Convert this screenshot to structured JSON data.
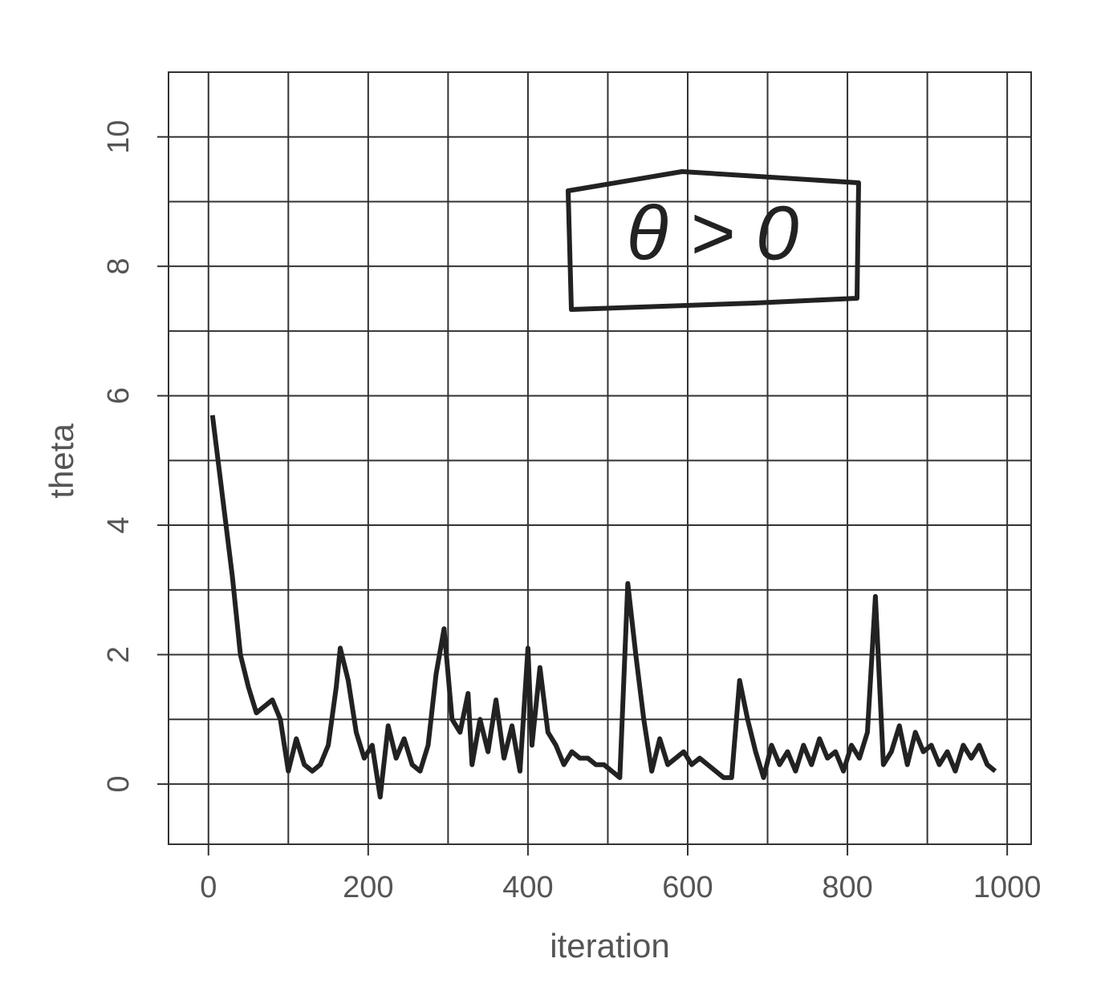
{
  "chart_data": {
    "type": "line",
    "x_label": "iteration",
    "y_label": "theta",
    "annotation": "θ > 0",
    "xlim": [
      -50,
      1030
    ],
    "ylim": [
      -0.93,
      11
    ],
    "xticks": [
      0,
      200,
      400,
      600,
      800,
      1000
    ],
    "yticks": [
      0,
      2,
      4,
      6,
      8,
      10
    ],
    "xgrid": [
      0,
      100,
      200,
      300,
      400,
      500,
      600,
      700,
      800,
      900,
      1000
    ],
    "ygrid": [
      0,
      1,
      2,
      3,
      4,
      5,
      6,
      7,
      8,
      9,
      10
    ],
    "grid": true,
    "series": [
      {
        "color": "#222222",
        "x": [
          5,
          10,
          20,
          30,
          40,
          50,
          60,
          70,
          80,
          90,
          100,
          110,
          120,
          130,
          140,
          150,
          160,
          165,
          175,
          185,
          195,
          205,
          215,
          225,
          235,
          245,
          255,
          265,
          275,
          285,
          295,
          305,
          315,
          325,
          330,
          340,
          350,
          360,
          370,
          380,
          390,
          400,
          405,
          415,
          425,
          435,
          445,
          455,
          465,
          475,
          485,
          495,
          505,
          515,
          525,
          535,
          545,
          555,
          565,
          575,
          585,
          595,
          605,
          615,
          625,
          635,
          645,
          655,
          665,
          675,
          685,
          695,
          705,
          715,
          725,
          735,
          745,
          755,
          765,
          775,
          785,
          795,
          805,
          815,
          825,
          835,
          845,
          855,
          865,
          875,
          885,
          895,
          905,
          915,
          925,
          935,
          945,
          955,
          965,
          975,
          985
        ],
        "values": [
          5.7,
          5.2,
          4.2,
          3.2,
          2.0,
          1.5,
          1.1,
          1.2,
          1.3,
          1.0,
          0.2,
          0.7,
          0.3,
          0.2,
          0.3,
          0.6,
          1.5,
          2.1,
          1.6,
          0.8,
          0.4,
          0.6,
          -0.2,
          0.9,
          0.4,
          0.7,
          0.3,
          0.2,
          0.6,
          1.7,
          2.4,
          1.0,
          0.8,
          1.4,
          0.3,
          1.0,
          0.5,
          1.3,
          0.4,
          0.9,
          0.2,
          2.1,
          0.6,
          1.8,
          0.8,
          0.6,
          0.3,
          0.5,
          0.4,
          0.4,
          0.3,
          0.3,
          0.2,
          0.1,
          3.1,
          2.0,
          1.0,
          0.2,
          0.7,
          0.3,
          0.4,
          0.5,
          0.3,
          0.4,
          0.3,
          0.2,
          0.1,
          0.1,
          1.6,
          1.0,
          0.5,
          0.1,
          0.6,
          0.3,
          0.5,
          0.2,
          0.6,
          0.3,
          0.7,
          0.4,
          0.5,
          0.2,
          0.6,
          0.4,
          0.8,
          2.9,
          0.3,
          0.5,
          0.9,
          0.3,
          0.8,
          0.5,
          0.6,
          0.3,
          0.5,
          0.2,
          0.6,
          0.4,
          0.6,
          0.3,
          0.2
        ]
      }
    ]
  }
}
